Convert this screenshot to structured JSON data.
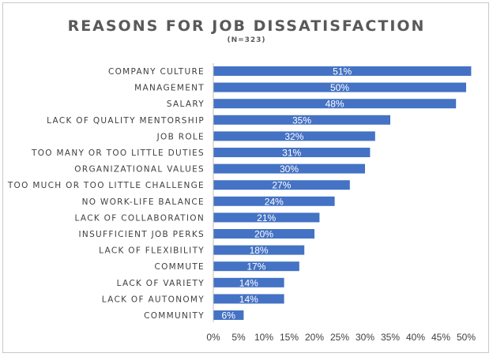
{
  "chart_data": {
    "type": "bar",
    "orientation": "horizontal",
    "title": "REASONS FOR JOB DISSATISFACTION",
    "subtitle": "(N=323)",
    "categories": [
      "COMPANY CULTURE",
      "MANAGEMENT",
      "SALARY",
      "LACK OF QUALITY MENTORSHIP",
      "JOB ROLE",
      "TOO MANY OR TOO LITTLE DUTIES",
      "ORGANIZATIONAL VALUES",
      "TOO MUCH OR TOO LITTLE CHALLENGE",
      "NO WORK-LIFE BALANCE",
      "LACK OF COLLABORATION",
      "INSUFFICIENT JOB PERKS",
      "LACK OF FLEXIBILITY",
      "COMMUTE",
      "LACK OF VARIETY",
      "LACK OF AUTONOMY",
      "COMMUNITY"
    ],
    "values": [
      51,
      50,
      48,
      35,
      32,
      31,
      30,
      27,
      24,
      21,
      20,
      18,
      17,
      14,
      14,
      6
    ],
    "data_labels": [
      "51%",
      "50%",
      "48%",
      "35%",
      "32%",
      "31%",
      "30%",
      "27%",
      "24%",
      "21%",
      "20%",
      "18%",
      "17%",
      "14%",
      "14%",
      "6%"
    ],
    "x_ticks": [
      "0%",
      "5%",
      "10%",
      "15%",
      "20%",
      "25%",
      "30%",
      "35%",
      "40%",
      "45%",
      "50%"
    ],
    "xlim": [
      0,
      50
    ],
    "xlabel": "",
    "ylabel": "",
    "grid": false,
    "legend": "none",
    "bar_color": "#4472c4",
    "axis_color": "#bfbfbf"
  }
}
